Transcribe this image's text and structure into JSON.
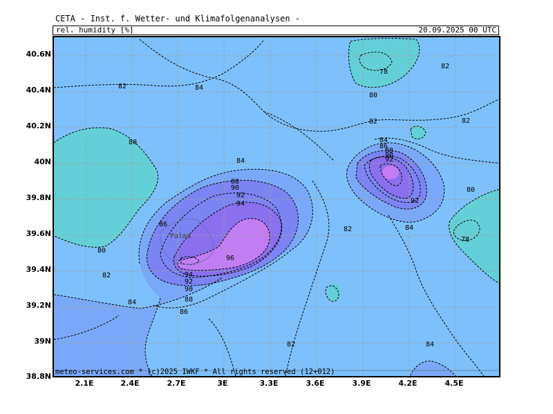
{
  "header": {
    "title": "CETA - Inst. f. Wetter- und Klimafolgenanalysen -",
    "parameter": "rel. humidity [%]",
    "datetime": "20.09.2025 00 UTC"
  },
  "footer": {
    "credit": "meteo-services.com * (c)2025 IWKF * All rights reserved (12+012)"
  },
  "map": {
    "place_label": "Palma",
    "colors": {
      "level_78_80": "#63cfd6",
      "level_82_84": "#7dc0fb",
      "level_84_86": "#7aa8f8",
      "level_88_92": "#7b84f2",
      "level_92_94": "#8a6fee",
      "level_96": "#c27df2"
    },
    "y_axis_labels": [
      "40.6N",
      "40.4N",
      "40.2N",
      "40N",
      "39.8N",
      "39.6N",
      "39.4N",
      "39.2N",
      "39N",
      "38.8N"
    ],
    "x_axis_labels": [
      "2.1E",
      "2.4E",
      "2.7E",
      "3E",
      "3.3E",
      "3.6E",
      "3.9E",
      "4.2E",
      "4.5E"
    ],
    "contour_labels": [
      "82",
      "84",
      "80",
      "84",
      "78",
      "82",
      "80",
      "82",
      "82",
      "84",
      "86",
      "88",
      "90",
      "92",
      "92",
      "84",
      "80",
      "88",
      "90",
      "92",
      "94",
      "86",
      "80",
      "82",
      "96",
      "94",
      "92",
      "90",
      "88",
      "86",
      "84",
      "82",
      "78",
      "82",
      "84"
    ]
  }
}
